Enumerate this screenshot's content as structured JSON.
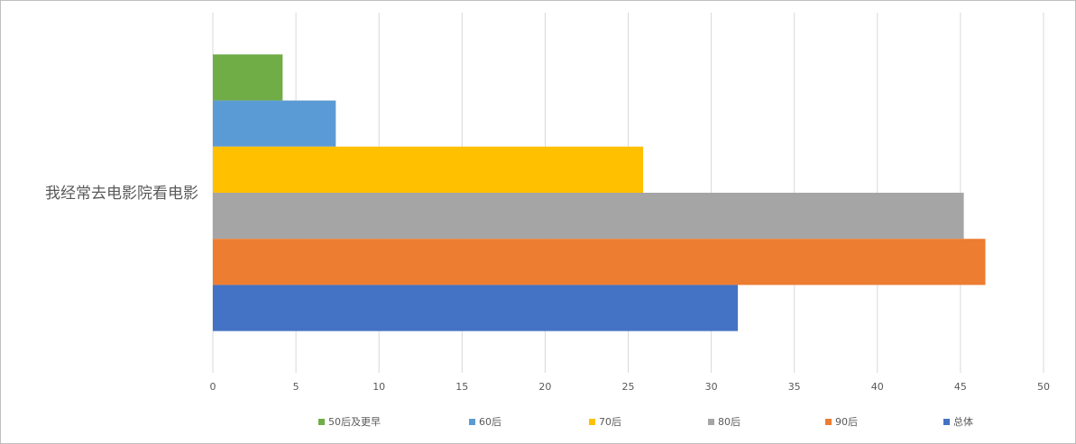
{
  "chart_data": {
    "type": "bar",
    "orientation": "horizontal",
    "categories": [
      "我经常去电影院看电影"
    ],
    "series": [
      {
        "name": "50后及更早",
        "color": "#70ad47",
        "values": [
          4.2
        ]
      },
      {
        "name": "60后",
        "color": "#5b9bd5",
        "values": [
          7.4
        ]
      },
      {
        "name": "70后",
        "color": "#ffc000",
        "values": [
          25.9
        ]
      },
      {
        "name": "80后",
        "color": "#a5a5a5",
        "values": [
          45.2
        ]
      },
      {
        "name": "90后",
        "color": "#ed7d31",
        "values": [
          46.5
        ]
      },
      {
        "name": "总体",
        "color": "#4472c4",
        "values": [
          31.6
        ]
      }
    ],
    "xlim": [
      0,
      50
    ],
    "xticks": [
      0,
      5,
      10,
      15,
      20,
      25,
      30,
      35,
      40,
      45,
      50
    ],
    "grid": true,
    "legend": "bottom"
  }
}
